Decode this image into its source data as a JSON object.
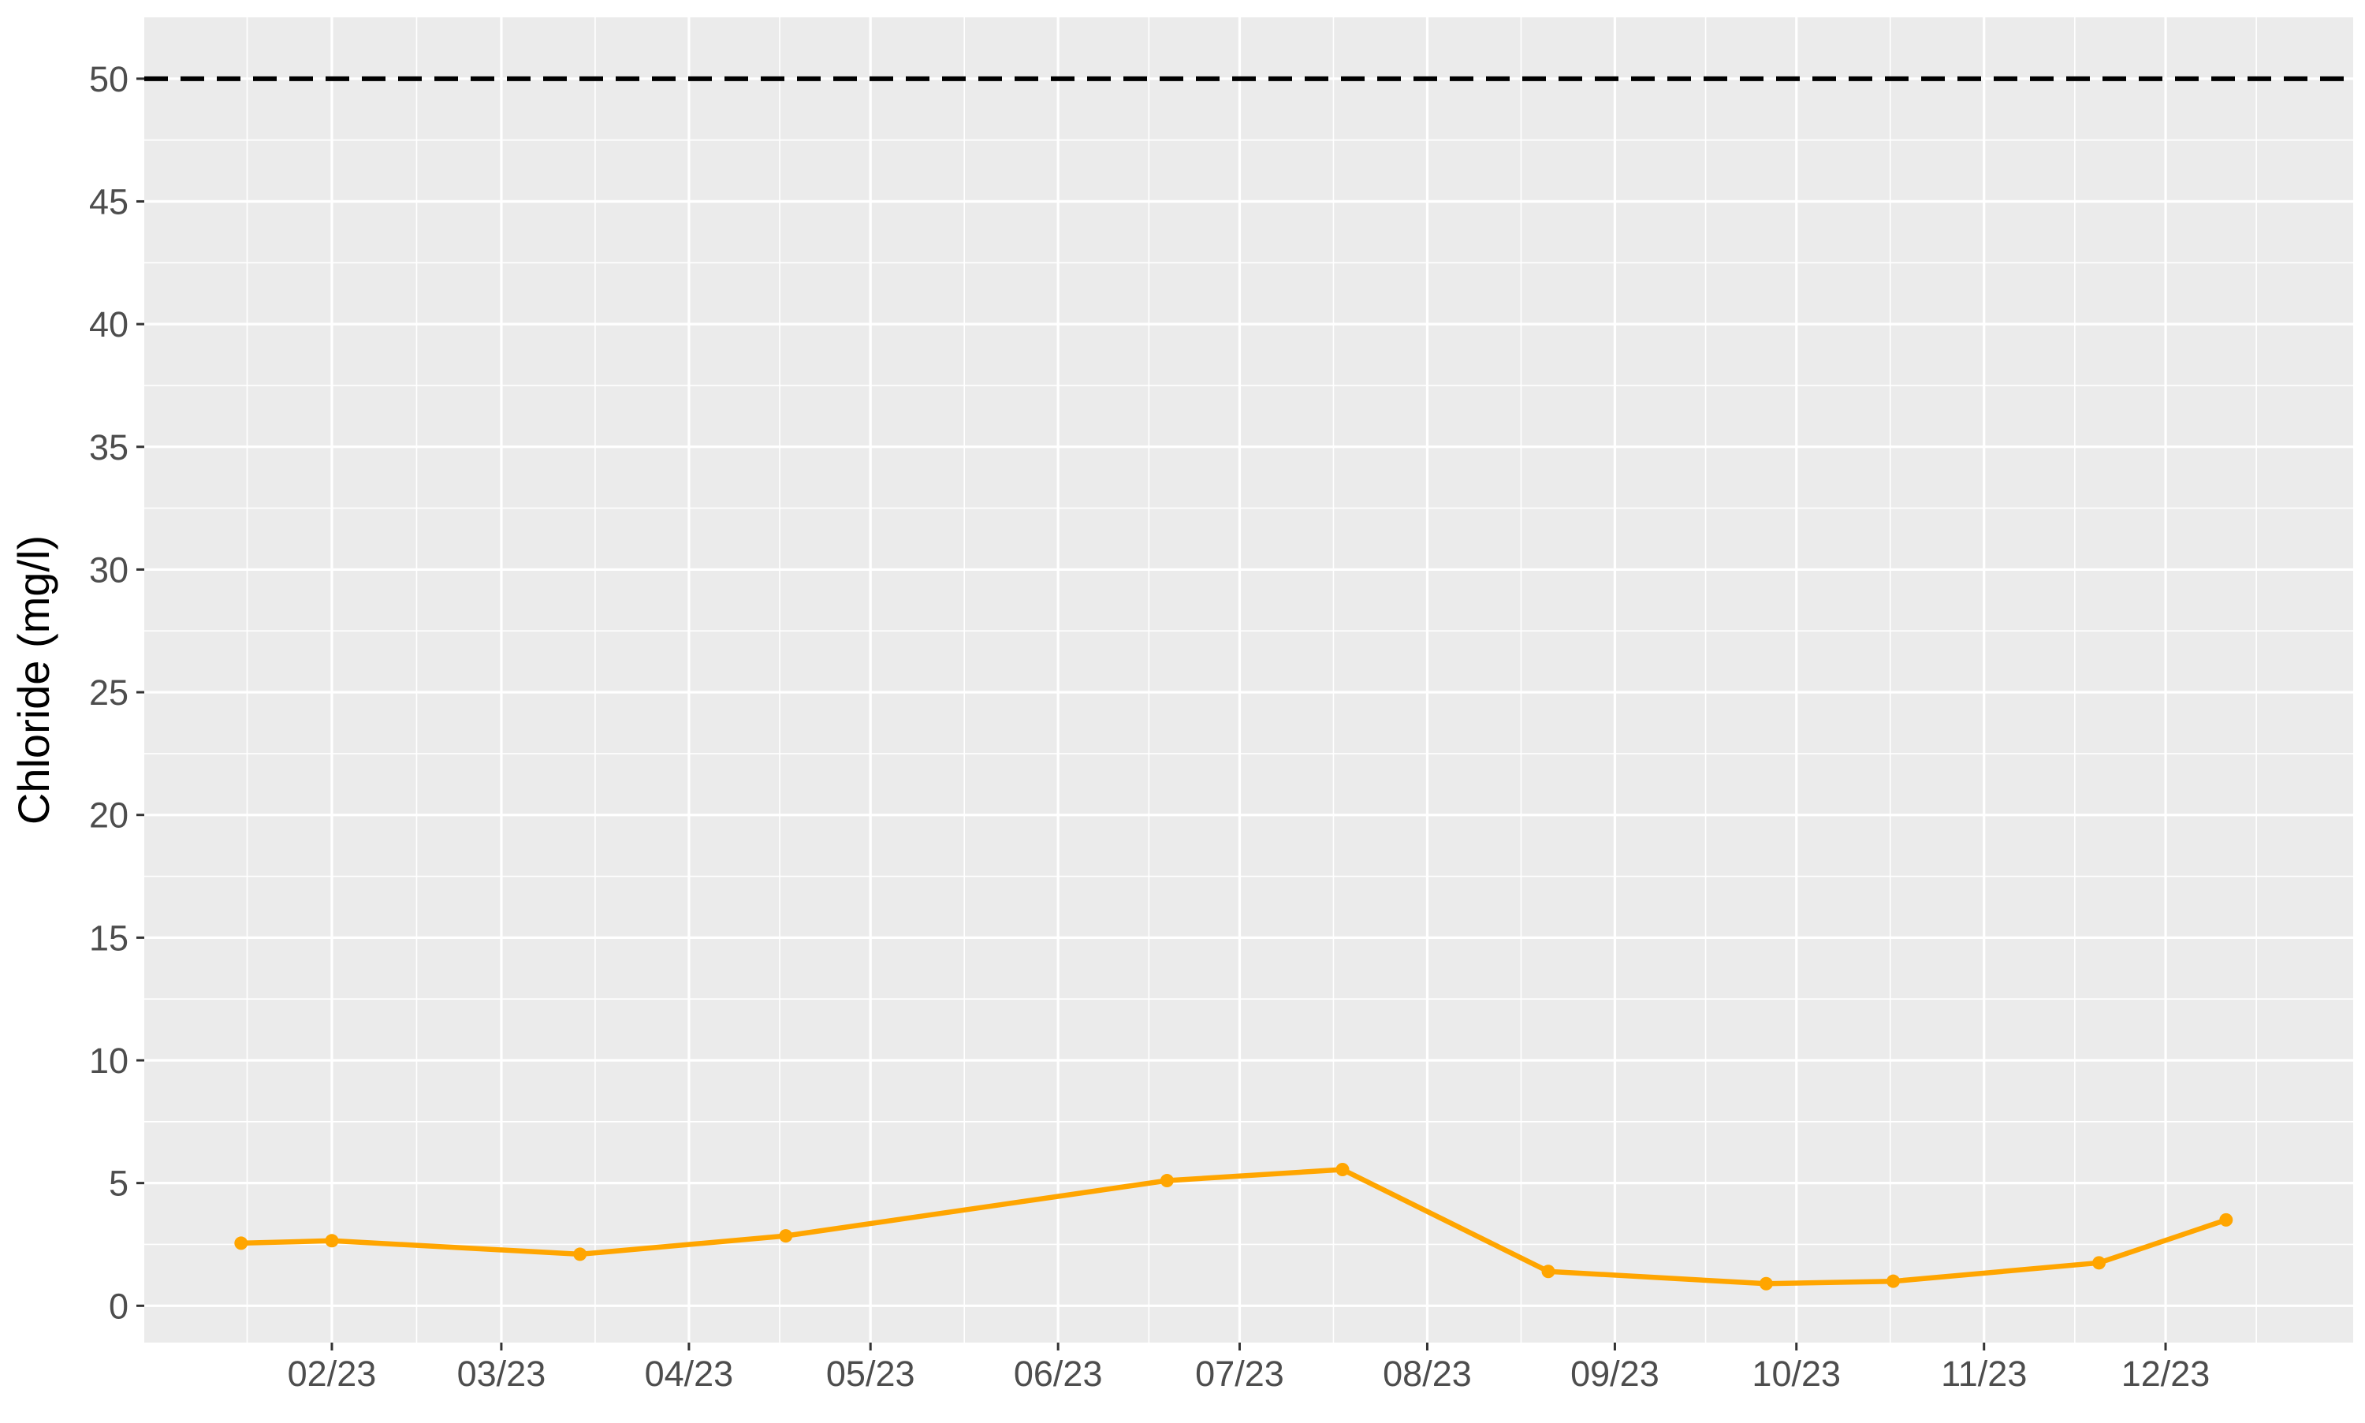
{
  "chart_data": {
    "type": "line",
    "title": "",
    "xlabel": "",
    "ylabel": "Chloride (mg/l)",
    "x_axis_type": "date",
    "x_range": [
      "2023-01-01",
      "2023-12-31"
    ],
    "x_ticks": [
      {
        "date": "2023-02-01",
        "label": "02/23"
      },
      {
        "date": "2023-03-01",
        "label": "03/23"
      },
      {
        "date": "2023-04-01",
        "label": "04/23"
      },
      {
        "date": "2023-05-01",
        "label": "05/23"
      },
      {
        "date": "2023-06-01",
        "label": "06/23"
      },
      {
        "date": "2023-07-01",
        "label": "07/23"
      },
      {
        "date": "2023-08-01",
        "label": "08/23"
      },
      {
        "date": "2023-09-01",
        "label": "09/23"
      },
      {
        "date": "2023-10-01",
        "label": "10/23"
      },
      {
        "date": "2023-11-01",
        "label": "11/23"
      },
      {
        "date": "2023-12-01",
        "label": "12/23"
      }
    ],
    "ylim": [
      -1.5,
      52.5
    ],
    "y_ticks": [
      0,
      5,
      10,
      15,
      20,
      25,
      30,
      35,
      40,
      45,
      50
    ],
    "grid": true,
    "legend": "none",
    "reference_line": {
      "y": 50,
      "style": "dashed",
      "color": "#000000"
    },
    "series": [
      {
        "color": "#FFA500",
        "points": [
          {
            "x": "2023-01-17",
            "y": 2.55
          },
          {
            "x": "2023-02-01",
            "y": 2.65
          },
          {
            "x": "2023-03-14",
            "y": 2.1
          },
          {
            "x": "2023-04-17",
            "y": 2.85
          },
          {
            "x": "2023-06-19",
            "y": 5.1
          },
          {
            "x": "2023-07-18",
            "y": 5.55
          },
          {
            "x": "2023-08-21",
            "y": 1.4
          },
          {
            "x": "2023-09-26",
            "y": 0.9
          },
          {
            "x": "2023-10-17",
            "y": 1.0
          },
          {
            "x": "2023-11-20",
            "y": 1.75
          },
          {
            "x": "2023-12-11",
            "y": 3.5
          }
        ]
      }
    ]
  },
  "colors": {
    "panel_background": "#EBEBEB",
    "grid_major": "#FFFFFF",
    "axis_text": "#4D4D4D",
    "axis_title": "#000000",
    "tick_mark": "#333333"
  }
}
